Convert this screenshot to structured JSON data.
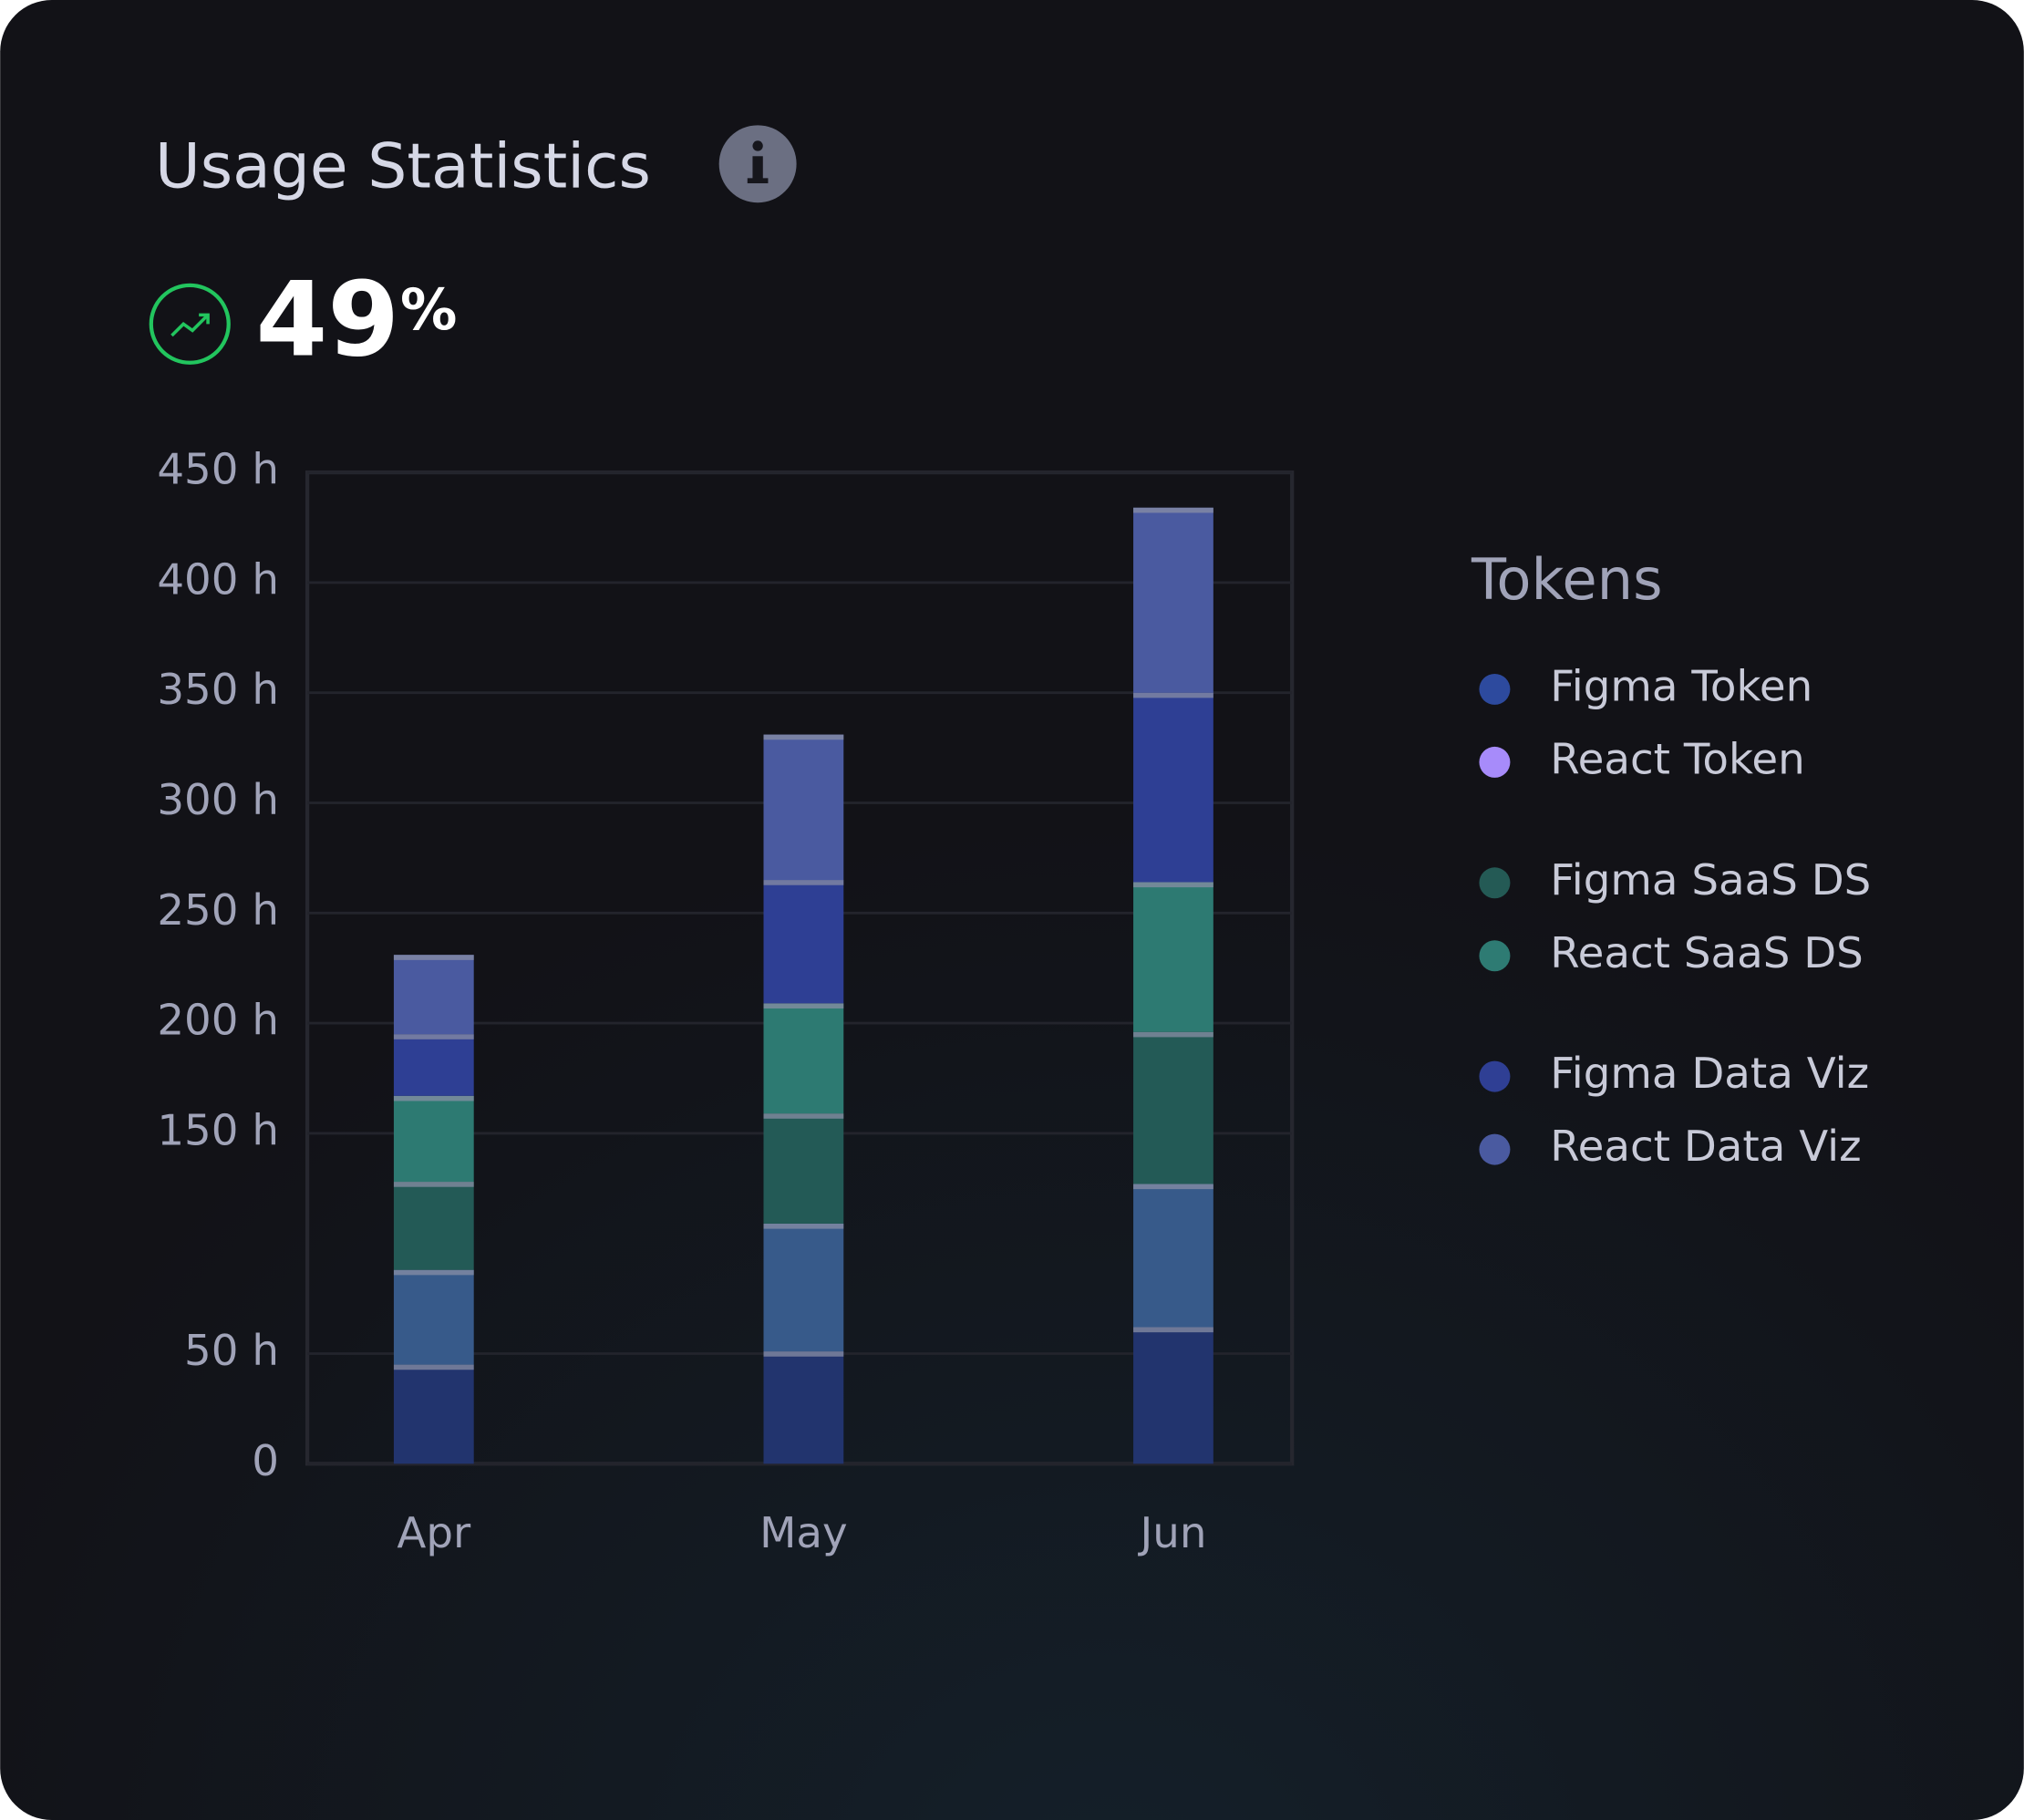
{
  "header": {
    "title": "Usage Statistics",
    "change_value": "49",
    "change_unit": "%"
  },
  "chart_data": {
    "type": "stacked_bar",
    "legend_title": "Tokens",
    "categories": [
      "Apr",
      "May",
      "Jun"
    ],
    "series": [
      {
        "name": "Figma Token",
        "color": "#22346e",
        "legend_color": "#2d4a9e",
        "values": [
          45,
          51,
          62
        ]
      },
      {
        "name": "React Token",
        "color": "#375a8a",
        "legend_color": "#a78bfa",
        "values": [
          43,
          58,
          65
        ]
      },
      {
        "name": "Figma SaaS DS",
        "color": "#235a56",
        "legend_color": "#245a55",
        "values": [
          40,
          50,
          69
        ]
      },
      {
        "name": "React SaaS DS",
        "color": "#2d7a72",
        "legend_color": "#2e7b73",
        "values": [
          39,
          50,
          68
        ]
      },
      {
        "name": "Figma Data Viz",
        "color": "#2e3f94",
        "legend_color": "#2f3f94",
        "values": [
          28,
          56,
          86
        ]
      },
      {
        "name": "React Data Viz",
        "color": "#4a5aa0",
        "legend_color": "#4a5aa0",
        "values": [
          36,
          66,
          84
        ]
      }
    ],
    "ylim": [
      0,
      450
    ],
    "yticks": [
      0,
      {
        "value": 50,
        "label": "50 h"
      },
      {
        "value": 150,
        "label": "150 h"
      },
      {
        "value": 200,
        "label": "200 h"
      },
      {
        "value": 250,
        "label": "250 h"
      },
      {
        "value": 300,
        "label": "300 h"
      },
      {
        "value": 350,
        "label": "350 h"
      },
      {
        "value": 400,
        "label": "400 h"
      },
      {
        "value": 450,
        "label": "450 h"
      }
    ],
    "grid": true
  }
}
